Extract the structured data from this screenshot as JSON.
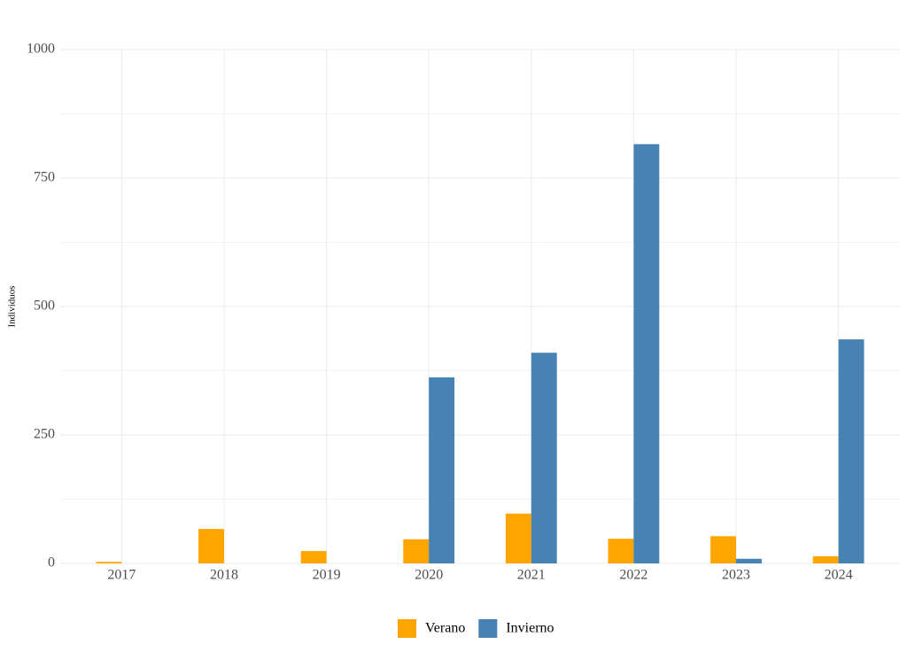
{
  "chart_data": {
    "type": "bar",
    "y_label": "Individuos",
    "categories": [
      "2017",
      "2018",
      "2019",
      "2020",
      "2021",
      "2022",
      "2023",
      "2024"
    ],
    "series": [
      {
        "name": "Verano",
        "color": "#ffa500",
        "values": [
          3,
          67,
          24,
          47,
          97,
          48,
          53,
          14
        ]
      },
      {
        "name": "Invierno",
        "color": "#4682b4",
        "values": [
          0,
          0,
          0,
          362,
          410,
          816,
          9,
          436
        ]
      }
    ],
    "ylim": [
      0,
      1000
    ],
    "yticks": [
      0,
      250,
      500,
      750,
      1000
    ],
    "grid": true,
    "legend": "bottom"
  }
}
